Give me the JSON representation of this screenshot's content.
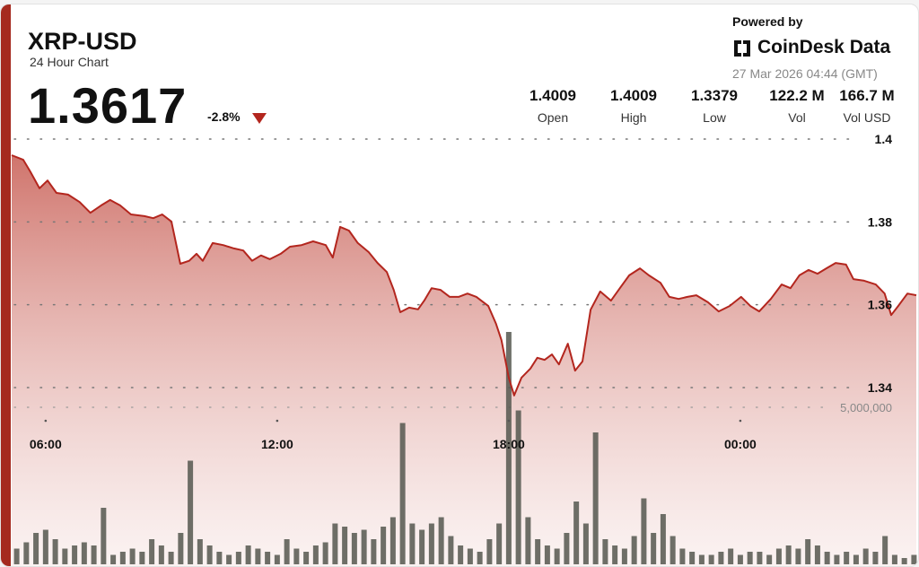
{
  "header": {
    "ticker": "XRP-USD",
    "subtitle": "24 Hour Chart",
    "price": "1.3617",
    "change": "-2.8%",
    "powered_by": "Powered by",
    "brand": "CoinDesk Data",
    "timestamp": "27 Mar 2026 04:44 (GMT)"
  },
  "stats": [
    {
      "value": "1.4009",
      "label": "Open"
    },
    {
      "value": "1.4009",
      "label": "High"
    },
    {
      "value": "1.3379",
      "label": "Low"
    },
    {
      "value": "122.2 M",
      "label": "Vol"
    },
    {
      "value": "166.7 M",
      "label": "Vol USD"
    }
  ],
  "chart_data": {
    "type": "line",
    "xlim": [
      5.12,
      28.56
    ],
    "xticks": [
      {
        "value": 6,
        "label": "06:00"
      },
      {
        "value": 12,
        "label": "12:00"
      },
      {
        "value": 18,
        "label": "18:00"
      },
      {
        "value": 24,
        "label": "00:00"
      }
    ],
    "ylim": [
      1.3,
      1.43
    ],
    "yticks": [
      1.34,
      1.36,
      1.38,
      1.4
    ],
    "y2lim": [
      0,
      10000000
    ],
    "y2ticks": [
      {
        "value": 5000000,
        "label": "5,000,000"
      }
    ],
    "grid": true,
    "series": [
      {
        "type": "line",
        "color": "#b3261e",
        "x": [
          5.12,
          5.42,
          5.6,
          5.84,
          6.05,
          6.28,
          6.58,
          6.88,
          7.16,
          7.44,
          7.67,
          7.93,
          8.21,
          8.56,
          8.79,
          9.02,
          9.26,
          9.49,
          9.72,
          9.91,
          10.07,
          10.33,
          10.6,
          10.88,
          11.12,
          11.35,
          11.58,
          11.81,
          12.09,
          12.33,
          12.63,
          12.93,
          13.26,
          13.44,
          13.63,
          13.86,
          14.09,
          14.37,
          14.6,
          14.84,
          15.02,
          15.19,
          15.42,
          15.65,
          15.81,
          16.0,
          16.23,
          16.47,
          16.7,
          16.93,
          17.16,
          17.47,
          17.67,
          17.81,
          18.0,
          18.14,
          18.33,
          18.56,
          18.74,
          18.93,
          19.12,
          19.3,
          19.53,
          19.72,
          19.91,
          20.12,
          20.37,
          20.65,
          20.88,
          21.12,
          21.4,
          21.63,
          21.93,
          22.16,
          22.4,
          22.63,
          22.86,
          23.16,
          23.44,
          23.72,
          24.02,
          24.26,
          24.49,
          24.79,
          25.07,
          25.3,
          25.53,
          25.77,
          26.0,
          26.23,
          26.47,
          26.74,
          26.93,
          27.21,
          27.51,
          27.74,
          27.91,
          28.09,
          28.33,
          28.56
        ],
        "values": [
          1.3961,
          1.395,
          1.3922,
          1.3881,
          1.39,
          1.387,
          1.3866,
          1.3848,
          1.3822,
          1.384,
          1.3853,
          1.384,
          1.3818,
          1.3814,
          1.3809,
          1.3818,
          1.3801,
          1.3699,
          1.3706,
          1.3723,
          1.3706,
          1.3749,
          1.3744,
          1.3736,
          1.3731,
          1.3706,
          1.3719,
          1.371,
          1.3723,
          1.374,
          1.3744,
          1.3753,
          1.3744,
          1.3714,
          1.3788,
          1.3779,
          1.3749,
          1.3727,
          1.3701,
          1.3679,
          1.3636,
          1.3582,
          1.3593,
          1.3589,
          1.361,
          1.364,
          1.3636,
          1.3619,
          1.3619,
          1.3627,
          1.3619,
          1.3597,
          1.3554,
          1.3515,
          1.3424,
          1.3381,
          1.3424,
          1.3446,
          1.3472,
          1.3467,
          1.348,
          1.3456,
          1.3506,
          1.3441,
          1.3463,
          1.3588,
          1.3632,
          1.361,
          1.364,
          1.3671,
          1.3688,
          1.3671,
          1.3653,
          1.3619,
          1.3614,
          1.3619,
          1.3623,
          1.3606,
          1.3584,
          1.3597,
          1.3619,
          1.3597,
          1.3584,
          1.3614,
          1.3649,
          1.364,
          1.3671,
          1.3684,
          1.3675,
          1.3688,
          1.3701,
          1.3697,
          1.3662,
          1.3658,
          1.3649,
          1.3627,
          1.3575,
          1.3597,
          1.3627,
          1.3623
        ]
      },
      {
        "type": "bar",
        "axis": "y2",
        "color": "#55574f",
        "x": [
          5.25,
          5.5,
          5.75,
          6.0,
          6.25,
          6.5,
          6.75,
          7.0,
          7.25,
          7.5,
          7.75,
          8.0,
          8.25,
          8.5,
          8.75,
          9.0,
          9.25,
          9.5,
          9.75,
          10.0,
          10.25,
          10.5,
          10.75,
          11.0,
          11.25,
          11.5,
          11.75,
          12.0,
          12.25,
          12.5,
          12.75,
          13.0,
          13.25,
          13.5,
          13.75,
          14.0,
          14.25,
          14.5,
          14.75,
          15.0,
          15.25,
          15.5,
          15.75,
          16.0,
          16.25,
          16.5,
          16.75,
          17.0,
          17.25,
          17.5,
          17.75,
          18.0,
          18.25,
          18.5,
          18.75,
          19.0,
          19.25,
          19.5,
          19.75,
          20.0,
          20.25,
          20.5,
          20.75,
          21.0,
          21.25,
          21.5,
          21.75,
          22.0,
          22.25,
          22.5,
          22.75,
          23.0,
          23.25,
          23.5,
          23.75,
          24.0,
          24.25,
          24.5,
          24.75,
          25.0,
          25.25,
          25.5,
          25.75,
          26.0,
          26.25,
          26.5,
          26.75,
          27.0,
          27.25,
          27.5,
          27.75,
          28.0,
          28.25,
          28.5
        ],
        "values": [
          500000,
          700000,
          1000000,
          1100000,
          800000,
          500000,
          600000,
          700000,
          600000,
          1800000,
          300000,
          400000,
          500000,
          400000,
          800000,
          600000,
          400000,
          1000000,
          3300000,
          800000,
          600000,
          400000,
          300000,
          400000,
          600000,
          500000,
          400000,
          300000,
          800000,
          500000,
          400000,
          600000,
          700000,
          1300000,
          1200000,
          1000000,
          1100000,
          800000,
          1200000,
          1500000,
          4500000,
          1300000,
          1100000,
          1300000,
          1500000,
          900000,
          600000,
          500000,
          400000,
          800000,
          1300000,
          7400000,
          4900000,
          1500000,
          800000,
          600000,
          500000,
          1000000,
          2000000,
          1300000,
          4200000,
          800000,
          600000,
          500000,
          900000,
          2100000,
          1000000,
          1600000,
          900000,
          500000,
          400000,
          300000,
          300000,
          400000,
          500000,
          300000,
          400000,
          400000,
          300000,
          500000,
          600000,
          500000,
          800000,
          600000,
          400000,
          300000,
          400000,
          300000,
          500000,
          400000,
          900000,
          300000,
          200000,
          300000
        ]
      }
    ]
  }
}
